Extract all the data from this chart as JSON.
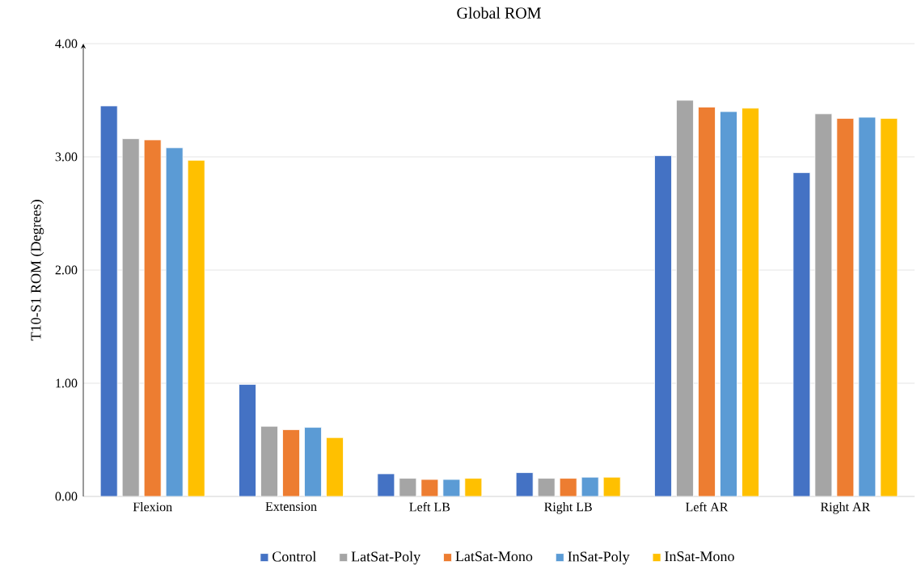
{
  "chart_data": {
    "type": "bar",
    "title": "Global ROM",
    "ylabel": "T10-S1  ROM (Degrees)",
    "categories": [
      "Flexion",
      "Extension",
      "Left LB",
      "Right LB",
      "Left AR",
      "Right AR"
    ],
    "series": [
      {
        "name": "Control",
        "color": "#4472c4",
        "values": [
          3.45,
          0.99,
          0.2,
          0.21,
          3.01,
          2.86
        ]
      },
      {
        "name": "LatSat-Poly",
        "color": "#a5a5a5",
        "values": [
          3.16,
          0.62,
          0.16,
          0.16,
          3.5,
          3.38
        ]
      },
      {
        "name": "LatSat-Mono",
        "color": "#ed7d31",
        "values": [
          3.15,
          0.59,
          0.15,
          0.16,
          3.44,
          3.34
        ]
      },
      {
        "name": "InSat-Poly",
        "color": "#5b9bd5",
        "values": [
          3.08,
          0.61,
          0.15,
          0.17,
          3.4,
          3.35
        ]
      },
      {
        "name": "InSat-Mono",
        "color": "#ffc000",
        "values": [
          2.97,
          0.52,
          0.16,
          0.17,
          3.43,
          3.34
        ]
      }
    ],
    "ylim": [
      0,
      4
    ],
    "yticks": [
      {
        "value": 0,
        "label": "0.00"
      },
      {
        "value": 1,
        "label": "1.00"
      },
      {
        "value": 2,
        "label": "2.00"
      },
      {
        "value": 3,
        "label": "3.00"
      },
      {
        "value": 4,
        "label": "4.00"
      }
    ],
    "grid": "y",
    "legend": "bottom"
  }
}
